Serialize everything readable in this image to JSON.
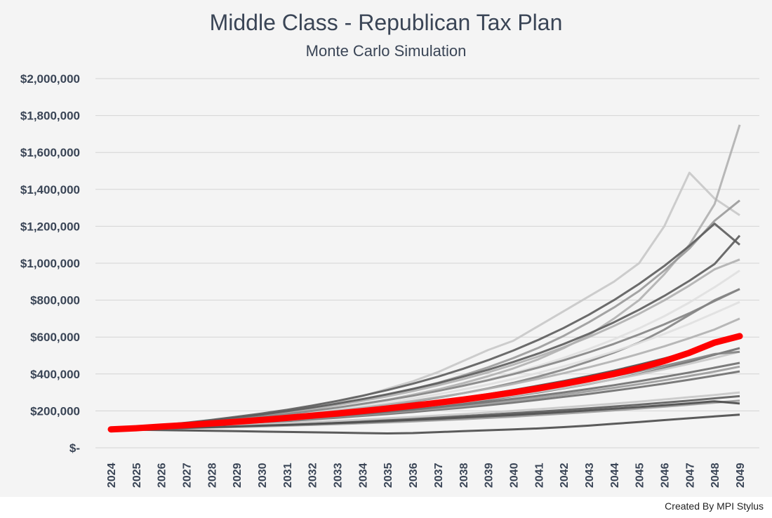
{
  "chart_data": {
    "type": "line",
    "title": "Middle Class - Republican Tax Plan",
    "subtitle": "Monte Carlo Simulation",
    "credit": "Created By MPI Stylus",
    "x": [
      2024,
      2025,
      2026,
      2027,
      2028,
      2029,
      2030,
      2031,
      2032,
      2033,
      2034,
      2035,
      2036,
      2037,
      2038,
      2039,
      2040,
      2041,
      2042,
      2043,
      2044,
      2045,
      2046,
      2047,
      2048,
      2049
    ],
    "ylim": [
      0,
      2000000
    ],
    "yticks": [
      0,
      200000,
      400000,
      600000,
      800000,
      1000000,
      1200000,
      1400000,
      1600000,
      1800000,
      2000000
    ],
    "ytick_labels": [
      "$-",
      "$200,000",
      "$400,000",
      "$600,000",
      "$800,000",
      "$1,000,000",
      "$1,200,000",
      "$1,400,000",
      "$1,600,000",
      "$1,800,000",
      "$2,000,000"
    ],
    "grid": true,
    "highlight_color": "#ff0000",
    "simulation_colors": [
      "#e0e0e0",
      "#c8c8c8",
      "#b0b0b0",
      "#9a9a9a",
      "#848484",
      "#6e6e6e",
      "#5c5c5c",
      "#4a4a4a"
    ],
    "series": [
      {
        "values": [
          100000,
          106000,
          115000,
          123000,
          132000,
          141000,
          151000,
          162000,
          174000,
          186000,
          199000,
          213000,
          228000,
          244000,
          261000,
          280000,
          300000,
          322000,
          346000,
          372000,
          400000,
          432000,
          470000,
          515000,
          570000,
          605000
        ]
      },
      {
        "values": [
          100000,
          110000,
          124000,
          135000,
          150000,
          165000,
          180000,
          200000,
          225000,
          250000,
          280000,
          320000,
          360000,
          410000,
          470000,
          530000,
          580000,
          660000,
          740000,
          820000,
          900000,
          1000000,
          1200000,
          1490000,
          1350000,
          1260000
        ]
      },
      {
        "values": [
          100000,
          104000,
          116000,
          126000,
          137000,
          150000,
          163000,
          178000,
          196000,
          214000,
          236000,
          260000,
          288000,
          316000,
          350000,
          388000,
          430000,
          480000,
          540000,
          610000,
          700000,
          800000,
          940000,
          1100000,
          1320000,
          1750000
        ]
      },
      {
        "values": [
          100000,
          108000,
          120000,
          132000,
          146000,
          160000,
          176000,
          194000,
          214000,
          236000,
          260000,
          288000,
          318000,
          352000,
          392000,
          436000,
          486000,
          542000,
          606000,
          680000,
          760000,
          850000,
          960000,
          1080000,
          1230000,
          1340000
        ]
      },
      {
        "values": [
          100000,
          105000,
          114000,
          123000,
          133000,
          143000,
          154000,
          167000,
          181000,
          196000,
          212000,
          230000,
          250000,
          272000,
          296000,
          322000,
          352000,
          386000,
          424000,
          468000,
          516000,
          570000,
          640000,
          720000,
          800000,
          860000
        ]
      },
      {
        "values": [
          100000,
          103000,
          110000,
          117000,
          125000,
          133000,
          142000,
          152000,
          162000,
          173000,
          185000,
          198000,
          212000,
          227000,
          243000,
          260000,
          280000,
          300000,
          322000,
          346000,
          372000,
          400000,
          432000,
          466000,
          504000,
          540000
        ]
      },
      {
        "values": [
          100000,
          102000,
          106000,
          110000,
          115000,
          119000,
          124000,
          129000,
          134000,
          140000,
          146000,
          152000,
          158000,
          165000,
          172000,
          180000,
          188000,
          196000,
          205000,
          214000,
          224000,
          234000,
          245000,
          256000,
          268000,
          280000
        ]
      },
      {
        "values": [
          100000,
          98000,
          96000,
          94000,
          92000,
          90000,
          88000,
          86000,
          84000,
          82000,
          80000,
          78000,
          80000,
          85000,
          90000,
          95000,
          100000,
          105000,
          112000,
          120000,
          130000,
          140000,
          150000,
          160000,
          170000,
          180000
        ]
      },
      {
        "values": [
          100000,
          106000,
          117000,
          128000,
          140000,
          153000,
          167000,
          182000,
          199000,
          217000,
          237000,
          259000,
          283000,
          309000,
          338000,
          370000,
          405000,
          444000,
          487000,
          535000,
          588000,
          647000,
          713000,
          787000,
          870000,
          960000
        ]
      },
      {
        "values": [
          100000,
          104000,
          112000,
          120000,
          128000,
          137000,
          146000,
          156000,
          167000,
          178000,
          190000,
          203000,
          217000,
          232000,
          248000,
          265000,
          283000,
          303000,
          324000,
          347000,
          371000,
          397000,
          425000,
          455000,
          487000,
          521000
        ]
      },
      {
        "values": [
          100000,
          107000,
          119000,
          131000,
          144000,
          158000,
          174000,
          191000,
          210000,
          231000,
          254000,
          279000,
          307000,
          338000,
          372000,
          409000,
          450000,
          495000,
          545000,
          600000,
          660000,
          726000,
          799000,
          879000,
          967000,
          1020000
        ]
      },
      {
        "values": [
          100000,
          101000,
          104000,
          107000,
          110000,
          113000,
          116000,
          120000,
          124000,
          128000,
          133000,
          138000,
          143000,
          149000,
          155000,
          162000,
          169000,
          177000,
          185000,
          194000,
          203000,
          213000,
          223000,
          234000,
          245000,
          256000
        ]
      },
      {
        "values": [
          100000,
          105000,
          113000,
          122000,
          131000,
          140000,
          150000,
          161000,
          172000,
          184000,
          197000,
          211000,
          226000,
          242000,
          259000,
          277000,
          296000,
          317000,
          339000,
          363000,
          388000,
          415000,
          444000,
          475000,
          508000,
          520000
        ]
      },
      {
        "values": [
          100000,
          103000,
          109000,
          115000,
          122000,
          129000,
          137000,
          145000,
          154000,
          163000,
          173000,
          183000,
          194000,
          206000,
          218000,
          231000,
          245000,
          260000,
          276000,
          292000,
          310000,
          328000,
          348000,
          369000,
          391000,
          414000
        ]
      },
      {
        "values": [
          100000,
          108000,
          121000,
          134000,
          148000,
          163000,
          180000,
          198000,
          218000,
          240000,
          264000,
          290000,
          319000,
          350000,
          385000,
          423000,
          465000,
          511000,
          562000,
          618000,
          680000,
          748000,
          823000,
          905000,
          996000,
          1150000
        ]
      },
      {
        "values": [
          100000,
          104000,
          113000,
          121000,
          130000,
          140000,
          151000,
          162000,
          175000,
          188000,
          202000,
          218000,
          234000,
          252000,
          271000,
          291000,
          313000,
          337000,
          362000,
          389000,
          418000,
          450000,
          484000,
          520000,
          559000,
          600000
        ]
      },
      {
        "values": [
          100000,
          106000,
          116000,
          126000,
          137000,
          149000,
          162000,
          176000,
          191000,
          208000,
          226000,
          246000,
          267000,
          290000,
          316000,
          343000,
          373000,
          406000,
          441000,
          480000,
          522000,
          567000,
          617000,
          671000,
          730000,
          790000
        ]
      },
      {
        "values": [
          100000,
          102000,
          107000,
          112000,
          117000,
          122000,
          128000,
          134000,
          140000,
          146000,
          153000,
          160000,
          167000,
          175000,
          183000,
          191000,
          200000,
          209000,
          219000,
          229000,
          239000,
          250000,
          262000,
          274000,
          286000,
          300000
        ]
      },
      {
        "values": [
          100000,
          105000,
          115000,
          125000,
          136000,
          147000,
          159000,
          172000,
          186000,
          201000,
          217000,
          235000,
          254000,
          274000,
          296000,
          320000,
          346000,
          374000,
          404000,
          436000,
          471000,
          509000,
          550000,
          594000,
          641000,
          700000
        ]
      },
      {
        "values": [
          100000,
          103000,
          110000,
          117000,
          124000,
          132000,
          140000,
          149000,
          158000,
          168000,
          178000,
          189000,
          201000,
          213000,
          226000,
          240000,
          255000,
          271000,
          288000,
          306000,
          325000,
          345000,
          366000,
          389000,
          413000,
          440000
        ]
      },
      {
        "values": [
          100000,
          107000,
          118000,
          129000,
          141000,
          154000,
          168000,
          183000,
          200000,
          218000,
          238000,
          259000,
          282000,
          308000,
          336000,
          366000,
          399000,
          435000,
          474000,
          517000,
          563000,
          614000,
          669000,
          729000,
          795000,
          860000
        ]
      },
      {
        "values": [
          100000,
          104000,
          111000,
          118000,
          126000,
          134000,
          143000,
          152000,
          162000,
          172000,
          183000,
          195000,
          207000,
          220000,
          234000,
          249000,
          265000,
          282000,
          300000,
          319000,
          339000,
          361000,
          384000,
          408000,
          434000,
          460000
        ]
      },
      {
        "values": [
          100000,
          109000,
          122000,
          136000,
          151000,
          168000,
          186000,
          206000,
          229000,
          254000,
          282000,
          313000,
          347000,
          385000,
          428000,
          475000,
          527000,
          585000,
          649000,
          721000,
          800000,
          888000,
          985000,
          1094000,
          1214000,
          1100000
        ]
      },
      {
        "values": [
          100000,
          102000,
          105000,
          108000,
          112000,
          116000,
          120000,
          124000,
          129000,
          134000,
          139000,
          145000,
          151000,
          157000,
          164000,
          171000,
          178000,
          186000,
          194000,
          203000,
          212000,
          221000,
          231000,
          241000,
          252000,
          240000
        ]
      }
    ]
  }
}
